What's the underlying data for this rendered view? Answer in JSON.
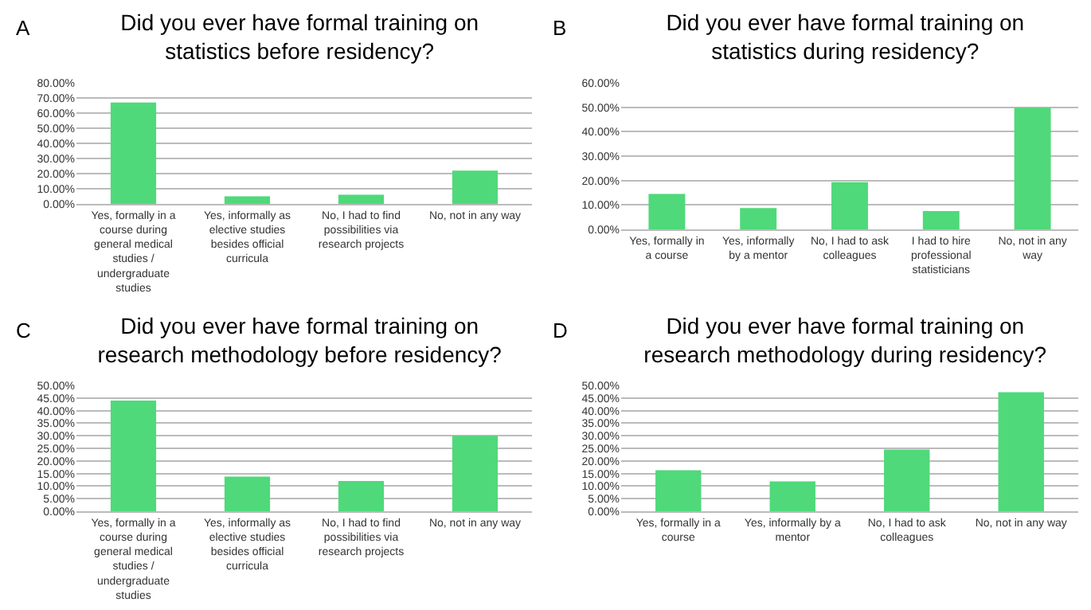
{
  "chart_data": [
    {
      "type": "bar",
      "title": "Did you ever have formal training on statistics before residency?",
      "annotations": [
        "A"
      ],
      "categories": [
        "Yes, formally in a course during general medical studies / undergraduate studies",
        "Yes, informally as elective studies besides official curricula",
        "No, I had to find possibilities via research projects",
        "No, not in any way"
      ],
      "values": [
        67,
        5,
        6,
        22
      ],
      "color": "#4fd97a",
      "ylim": [
        0,
        80
      ],
      "yticks": [
        {
          "value": 0,
          "label": "0.00%"
        },
        {
          "value": 10,
          "label": "10.00%"
        },
        {
          "value": 20,
          "label": "20.00%"
        },
        {
          "value": 30,
          "label": "30.00%"
        },
        {
          "value": 40,
          "label": "40.00%"
        },
        {
          "value": 50,
          "label": "50.00%"
        },
        {
          "value": 60,
          "label": "60.00%"
        },
        {
          "value": 70,
          "label": "70.00%"
        },
        {
          "value": 80,
          "label": "80.00%"
        }
      ],
      "grid": "y"
    },
    {
      "type": "bar",
      "title": "Did you ever have formal training on statistics during residency?",
      "annotations": [
        "B"
      ],
      "categories": [
        "Yes, formally in a course",
        "Yes, informally by a mentor",
        "No, I had to ask colleagues",
        "I had to hire professional statisticians",
        "No, not in any way"
      ],
      "values": [
        14.5,
        8.7,
        19.3,
        7.5,
        49.8
      ],
      "color": "#4fd97a",
      "ylim": [
        0,
        60
      ],
      "yticks": [
        {
          "value": 0,
          "label": "0.00%"
        },
        {
          "value": 10,
          "label": "10.00%"
        },
        {
          "value": 20,
          "label": "20.00%"
        },
        {
          "value": 30,
          "label": "30.00%"
        },
        {
          "value": 40,
          "label": "40.00%"
        },
        {
          "value": 50,
          "label": "50.00%"
        },
        {
          "value": 60,
          "label": "60.00%"
        }
      ],
      "grid": "y"
    },
    {
      "type": "bar",
      "title": "Did you ever have formal training on research methodology before residency?",
      "annotations": [
        "C"
      ],
      "categories": [
        "Yes, formally in a course during general medical studies / undergraduate studies",
        "Yes, informally as elective studies besides official curricula",
        "No, I had to find possibilities via research projects",
        "No, not in any way"
      ],
      "values": [
        44,
        13.8,
        12,
        30
      ],
      "color": "#4fd97a",
      "ylim": [
        0,
        50
      ],
      "yticks": [
        {
          "value": 0,
          "label": "0.00%"
        },
        {
          "value": 5,
          "label": "5.00%"
        },
        {
          "value": 10,
          "label": "10.00%"
        },
        {
          "value": 15,
          "label": "15.00%"
        },
        {
          "value": 20,
          "label": "20.00%"
        },
        {
          "value": 25,
          "label": "25.00%"
        },
        {
          "value": 30,
          "label": "30.00%"
        },
        {
          "value": 35,
          "label": "35.00%"
        },
        {
          "value": 40,
          "label": "40.00%"
        },
        {
          "value": 45,
          "label": "45.00%"
        },
        {
          "value": 50,
          "label": "50.00%"
        }
      ],
      "grid": "y"
    },
    {
      "type": "bar",
      "title": "Did you ever have formal training on research methodology during residency?",
      "annotations": [
        "D"
      ],
      "categories": [
        "Yes, formally in a course",
        "Yes, informally by a mentor",
        "No, I had to ask colleagues",
        "No, not in any way"
      ],
      "values": [
        16.3,
        11.9,
        24.5,
        47.3
      ],
      "color": "#4fd97a",
      "ylim": [
        0,
        50
      ],
      "yticks": [
        {
          "value": 0,
          "label": "0.00%"
        },
        {
          "value": 5,
          "label": "5.00%"
        },
        {
          "value": 10,
          "label": "10.00%"
        },
        {
          "value": 15,
          "label": "15.00%"
        },
        {
          "value": 20,
          "label": "20.00%"
        },
        {
          "value": 25,
          "label": "25.00%"
        },
        {
          "value": 30,
          "label": "30.00%"
        },
        {
          "value": 35,
          "label": "35.00%"
        },
        {
          "value": 40,
          "label": "40.00%"
        },
        {
          "value": 45,
          "label": "45.00%"
        },
        {
          "value": 50,
          "label": "50.00%"
        }
      ],
      "grid": "y"
    }
  ]
}
